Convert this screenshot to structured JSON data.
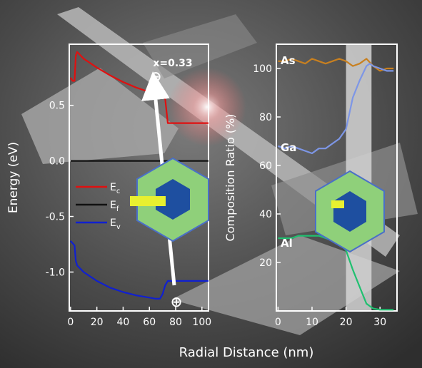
{
  "xlabel": "Radial Distance (nm)",
  "chart_data": [
    {
      "type": "line",
      "ylabel": "Energy (eV)",
      "xlim": [
        -1,
        105
      ],
      "ylim": [
        -1.35,
        1.05
      ],
      "x_ticks": [
        0,
        20,
        40,
        60,
        80,
        100
      ],
      "y_ticks": [
        {
          "v": 0.5,
          "label": "0.5"
        },
        {
          "v": 0.0,
          "label": "0.0"
        },
        {
          "v": -0.5,
          "label": "-0.5"
        },
        {
          "v": -1.0,
          "label": "-1.0"
        }
      ],
      "annotation": "x=0.33",
      "minus_symbol": "⊖",
      "plus_symbol": "⊕",
      "legend": [
        {
          "label": "E",
          "sub": "c",
          "color": "#e01010"
        },
        {
          "label": "E",
          "sub": "f",
          "color": "#111111"
        },
        {
          "label": "E",
          "sub": "v",
          "color": "#1020d0"
        }
      ],
      "series": [
        {
          "color": "#e01010",
          "x": [
            0,
            1.5,
            3,
            4,
            5,
            10,
            20,
            30,
            40,
            50,
            60,
            65,
            68,
            70,
            72,
            74,
            80,
            90,
            100,
            105
          ],
          "y": [
            0.75,
            0.72,
            0.72,
            0.95,
            0.98,
            0.92,
            0.84,
            0.77,
            0.71,
            0.66,
            0.62,
            0.61,
            0.6,
            0.58,
            0.56,
            0.34,
            0.34,
            0.34,
            0.34,
            0.34
          ]
        },
        {
          "color": "#111111",
          "x": [
            0,
            105
          ],
          "y": [
            0,
            0
          ]
        },
        {
          "color": "#1020d0",
          "x": [
            0,
            3,
            4,
            5,
            10,
            20,
            30,
            40,
            50,
            60,
            65,
            68,
            70,
            72,
            74,
            80,
            90,
            100,
            105
          ],
          "y": [
            -0.72,
            -0.76,
            -0.9,
            -0.94,
            -1.0,
            -1.08,
            -1.14,
            -1.18,
            -1.21,
            -1.23,
            -1.24,
            -1.24,
            -1.2,
            -1.12,
            -1.08,
            -1.08,
            -1.08,
            -1.08,
            -1.08
          ]
        }
      ]
    },
    {
      "type": "line",
      "ylabel": "Composition Ratio (%)",
      "xlim": [
        -0.5,
        35
      ],
      "ylim": [
        0,
        110
      ],
      "x_ticks": [
        0,
        10,
        20,
        30
      ],
      "y_ticks": [
        {
          "v": 100,
          "label": "100"
        },
        {
          "v": 80,
          "label": "80"
        },
        {
          "v": 60,
          "label": "60"
        },
        {
          "v": 40,
          "label": "40"
        },
        {
          "v": 20,
          "label": "20"
        }
      ],
      "shaded_band": [
        20,
        27.5
      ],
      "series": [
        {
          "name": "As",
          "color": "#c88020",
          "x": [
            0,
            2,
            4,
            6,
            8,
            10,
            12,
            14,
            16,
            18,
            20,
            22,
            24,
            26,
            28,
            30,
            32,
            34
          ],
          "y": [
            103,
            103,
            104,
            103,
            102,
            104,
            103,
            102,
            103,
            104,
            103,
            101,
            102,
            104,
            101,
            99,
            100,
            100
          ]
        },
        {
          "name": "Ga",
          "color": "#7d96e6",
          "x": [
            0,
            2,
            4,
            6,
            8,
            10,
            12,
            14,
            16,
            18,
            20,
            22,
            24,
            26,
            27,
            28,
            30,
            32,
            34
          ],
          "y": [
            68,
            67,
            68,
            67,
            66,
            65,
            67,
            67,
            69,
            71,
            75,
            88,
            95,
            101,
            102,
            101,
            100,
            99,
            99
          ]
        },
        {
          "name": "Al",
          "color": "#20c070",
          "x": [
            0,
            2,
            4,
            6,
            8,
            10,
            12,
            14,
            16,
            18,
            20,
            22,
            24,
            26,
            28,
            30,
            32,
            34
          ],
          "y": [
            30,
            30,
            30,
            31,
            31,
            31,
            31,
            30,
            29,
            28,
            25,
            17,
            10,
            3,
            1,
            0.5,
            0.5,
            0.5
          ]
        }
      ]
    }
  ]
}
